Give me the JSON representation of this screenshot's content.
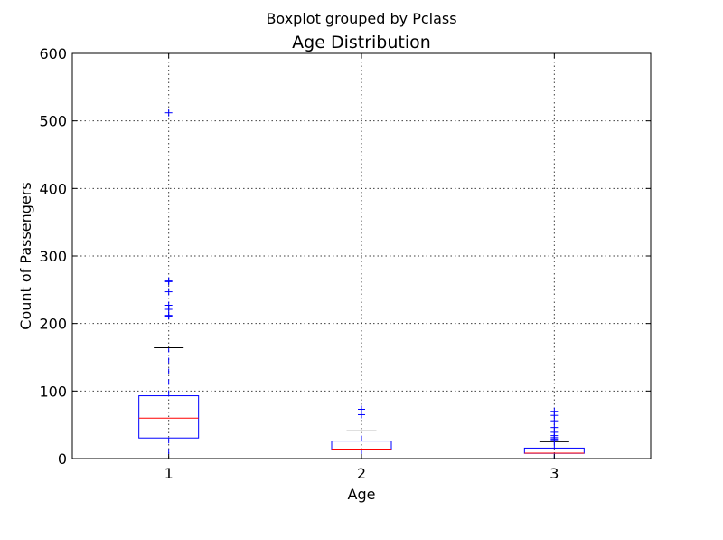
{
  "chart_data": {
    "type": "boxplot",
    "suptitle": "Boxplot grouped by Pclass",
    "title": "Age Distribution",
    "xlabel": "Age",
    "ylabel": "Count of Passengers",
    "ylim": [
      0,
      600
    ],
    "yticks": [
      0,
      100,
      200,
      300,
      400,
      500,
      600
    ],
    "grid": true,
    "categories": [
      "1",
      "2",
      "3"
    ],
    "boxes": [
      {
        "category": "1",
        "min": 0,
        "q1": 30.5,
        "median": 60,
        "q3": 93,
        "max": 164,
        "outliers": [
          211,
          212,
          221,
          227,
          247,
          262,
          263,
          512
        ]
      },
      {
        "category": "2",
        "min": 0,
        "q1": 13,
        "median": 14,
        "q3": 26,
        "max": 41,
        "outliers": [
          65,
          73,
          73
        ]
      },
      {
        "category": "3",
        "min": 0,
        "q1": 7.8,
        "median": 8,
        "q3": 15.5,
        "max": 25,
        "outliers": [
          27,
          29,
          31,
          34,
          39,
          46,
          56,
          64,
          70
        ]
      }
    ],
    "colors": {
      "box": "#0000ff",
      "median": "#ff0000",
      "whisker": "#0000ff",
      "cap": "#000000",
      "flier": "#0000ff"
    }
  }
}
